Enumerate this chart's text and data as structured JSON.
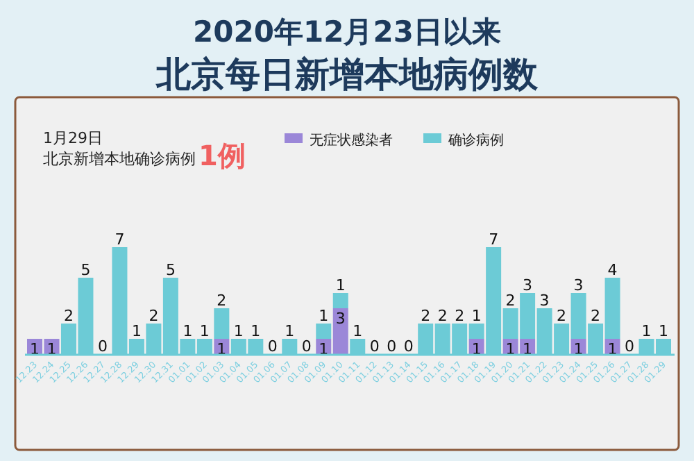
{
  "chart_data": {
    "type": "bar",
    "stacked": true,
    "title": "2020年12月23日以来",
    "subtitle": "北京每日新增本地病例数",
    "annotations": [
      "1月29日",
      "北京新增本地确诊病例",
      "1例"
    ],
    "categories": [
      "12.23",
      "12.24",
      "12.25",
      "12.26",
      "12.27",
      "12.28",
      "12.29",
      "12.30",
      "12.31",
      "01.01",
      "01.02",
      "01.03",
      "01.04",
      "01.05",
      "01.06",
      "01.07",
      "01.08",
      "01.09",
      "01.10",
      "01.11",
      "01.12",
      "01.13",
      "01.14",
      "01.15",
      "01.16",
      "01.17",
      "01.18",
      "01.19",
      "01.20",
      "01.21",
      "01.22",
      "01.23",
      "01.24",
      "01.25",
      "01.26",
      "01.27",
      "01.28",
      "01.29"
    ],
    "legend": "top",
    "series": [
      {
        "name": "无症状感染者",
        "color": "#9b87d8",
        "values": [
          1,
          1,
          0,
          0,
          0,
          0,
          0,
          0,
          0,
          0,
          0,
          1,
          0,
          0,
          0,
          0,
          0,
          1,
          3,
          0,
          0,
          0,
          0,
          0,
          0,
          0,
          1,
          0,
          1,
          1,
          0,
          0,
          1,
          0,
          1,
          0,
          0,
          0
        ],
        "value_labels": [
          "1",
          "1",
          null,
          null,
          null,
          null,
          null,
          null,
          null,
          null,
          null,
          "1",
          null,
          null,
          null,
          null,
          null,
          "1",
          "3",
          null,
          null,
          null,
          null,
          null,
          null,
          null,
          "1",
          null,
          "1",
          "1",
          null,
          null,
          "1",
          null,
          "1",
          null,
          null,
          null
        ]
      },
      {
        "name": "确诊病例",
        "color": "#6ccbd6",
        "values": [
          0,
          0,
          2,
          5,
          0,
          7,
          1,
          2,
          5,
          1,
          1,
          2,
          1,
          1,
          0,
          1,
          0,
          1,
          1,
          1,
          0,
          0,
          0,
          2,
          2,
          2,
          1,
          7,
          2,
          3,
          3,
          2,
          3,
          2,
          4,
          0,
          1,
          1
        ],
        "value_labels": [
          null,
          null,
          "2",
          "5",
          "0",
          "7",
          "1",
          "2",
          "5",
          "1",
          "1",
          "2",
          "1",
          "1",
          "0",
          "1",
          "0",
          "1",
          "1",
          "1",
          "0",
          "0",
          "0",
          "2",
          "2",
          "2",
          "1",
          "7",
          "2",
          "3",
          "3",
          "2",
          "3",
          "2",
          "4",
          "0",
          "1",
          "1"
        ]
      }
    ]
  }
}
